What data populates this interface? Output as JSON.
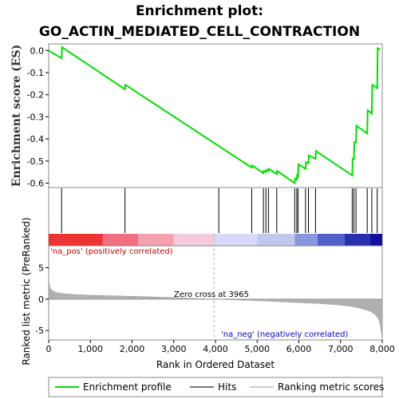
{
  "chart_data": {
    "type": "line",
    "title": "Enrichment plot:",
    "subtitle": "GO_ACTIN_MEDIATED_CELL_CONTRACTION",
    "xlabel": "Rank in Ordered Dataset",
    "ylabel_top": "Enrichment score (ES)",
    "ylabel_bottom": "Ranked list metric (PreRanked)",
    "xlim": [
      0,
      8000
    ],
    "x_ticks": [
      0,
      1000,
      2000,
      3000,
      4000,
      5000,
      6000,
      7000,
      8000
    ],
    "x_tick_labels": [
      "0",
      "1,000",
      "2,000",
      "3,000",
      "4,000",
      "5,000",
      "6,000",
      "7,000",
      "8,000"
    ],
    "es_ylim": [
      -0.62,
      0.03
    ],
    "es_ticks": [
      0.0,
      -0.1,
      -0.2,
      -0.3,
      -0.4,
      -0.5,
      -0.6
    ],
    "es_tick_labels": [
      "0.0",
      "-0.1",
      "-0.2",
      "-0.3",
      "-0.4",
      "-0.5",
      "-0.6"
    ],
    "metric_ylim": [
      -6.5,
      8.5
    ],
    "metric_ticks": [
      5,
      0,
      -5
    ],
    "metric_tick_labels": [
      "5",
      "0",
      "-5"
    ],
    "series": [
      {
        "name": "Enrichment profile",
        "color": "#00ff00",
        "x": [
          0,
          310,
          320,
          1830,
          1840,
          4870,
          4880,
          5150,
          5160,
          5210,
          5220,
          5270,
          5280,
          5470,
          5480,
          5900,
          5910,
          5950,
          5960,
          5980,
          5990,
          6160,
          6170,
          6230,
          6240,
          6400,
          6410,
          7280,
          7290,
          7320,
          7330,
          7370,
          7380,
          7640,
          7650,
          7750,
          7760,
          7880,
          7890,
          7950
        ],
        "y": [
          0.0,
          -0.035,
          0.015,
          -0.175,
          -0.155,
          -0.53,
          -0.52,
          -0.555,
          -0.545,
          -0.55,
          -0.54,
          -0.545,
          -0.535,
          -0.56,
          -0.545,
          -0.6,
          -0.58,
          -0.585,
          -0.565,
          -0.57,
          -0.515,
          -0.535,
          -0.505,
          -0.51,
          -0.475,
          -0.49,
          -0.455,
          -0.565,
          -0.49,
          -0.49,
          -0.415,
          -0.415,
          -0.34,
          -0.375,
          -0.27,
          -0.285,
          -0.155,
          -0.17,
          0.01,
          0.005
        ]
      }
    ],
    "hits": [
      310,
      1830,
      4080,
      4870,
      5150,
      5210,
      5270,
      5470,
      5900,
      5950,
      5980,
      6160,
      6230,
      6400,
      7280,
      7320,
      7370,
      7640,
      7750,
      7880
    ],
    "hits_legend": "Hits",
    "ranking_legend": "Ranking metric scores",
    "zero_cross_label": "Zero cross at 3965",
    "zero_cross_x": 3965,
    "pos_label": "'na_pos' (positively correlated)",
    "neg_label": "'na_neg' (negatively correlated)",
    "heat_segments": [
      {
        "start": 0,
        "end": 1300,
        "color": "#ee3333"
      },
      {
        "start": 1300,
        "end": 2150,
        "color": "#f07080"
      },
      {
        "start": 2150,
        "end": 3000,
        "color": "#f5a0b0"
      },
      {
        "start": 3000,
        "end": 3965,
        "color": "#f8c8e0"
      },
      {
        "start": 3965,
        "end": 5000,
        "color": "#d8d8f8"
      },
      {
        "start": 5000,
        "end": 5900,
        "color": "#c0c8f0"
      },
      {
        "start": 5900,
        "end": 6450,
        "color": "#8898e0"
      },
      {
        "start": 6450,
        "end": 7100,
        "color": "#5060c8"
      },
      {
        "start": 7100,
        "end": 7700,
        "color": "#2830b0"
      },
      {
        "start": 7700,
        "end": 8000,
        "color": "#1010a0"
      }
    ],
    "metric_curve": {
      "x": [
        0,
        30,
        80,
        150,
        250,
        400,
        600,
        1000,
        2000,
        3000,
        3965,
        5000,
        6000,
        6500,
        7000,
        7300,
        7500,
        7700,
        7800,
        7900,
        7950,
        7980,
        8000
      ],
      "y": [
        3.2,
        1.8,
        1.4,
        1.15,
        0.95,
        0.85,
        0.75,
        0.62,
        0.45,
        0.25,
        0.0,
        -0.25,
        -0.55,
        -0.7,
        -0.95,
        -1.2,
        -1.5,
        -1.9,
        -2.3,
        -3.0,
        -4.0,
        -5.5,
        -6.3
      ]
    },
    "legend": {
      "profile": "Enrichment profile",
      "hits": "Hits",
      "ranking": "Ranking metric scores"
    }
  }
}
